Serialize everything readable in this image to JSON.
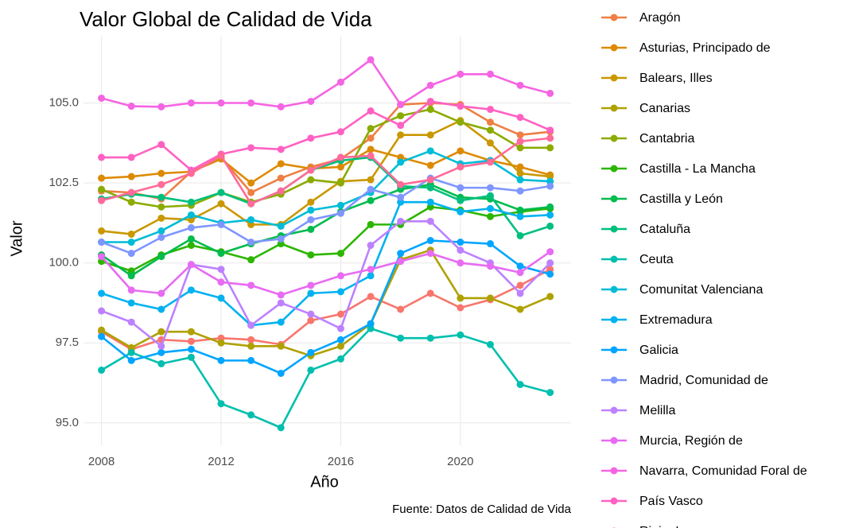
{
  "chart_data": {
    "type": "line",
    "title": "Valor Global de Calidad de Vida",
    "x_label": "Año",
    "y_label": "Valor",
    "caption": "Fuente: Datos de Calidad de Vida",
    "x": [
      2008,
      2009,
      2010,
      2011,
      2012,
      2013,
      2014,
      2015,
      2016,
      2017,
      2018,
      2019,
      2020,
      2021,
      2022,
      2023
    ],
    "xlim": [
      2007.4,
      2023.7
    ],
    "xticks": [
      2008,
      2012,
      2016,
      2020
    ],
    "ylim": [
      94.3,
      107.1
    ],
    "yticks": [
      {
        "value": 95,
        "label": "95.0"
      },
      {
        "value": 97.5,
        "label": "97.5"
      },
      {
        "value": 100,
        "label": "100.0"
      },
      {
        "value": 102.5,
        "label": "102.5"
      },
      {
        "value": 105,
        "label": "105.0"
      }
    ],
    "grid": true,
    "legend": "right",
    "series": [
      {
        "color": "#F8766D",
        "values": [
          97.85,
          97.3,
          97.6,
          97.55,
          97.65,
          97.6,
          97.45,
          98.2,
          98.4,
          98.95,
          98.55,
          99.05,
          98.6,
          98.85,
          99.3,
          99.8
        ]
      },
      {
        "name": "Aragón",
        "color": "#EE7F45",
        "values": [
          102.25,
          102.2,
          102.0,
          102.85,
          103.3,
          102.2,
          102.65,
          103.0,
          103.25,
          103.9,
          104.95,
          105.0,
          104.95,
          104.4,
          104.0,
          104.1
        ]
      },
      {
        "name": "Asturias, Principado de",
        "color": "#DD8A00",
        "values": [
          102.65,
          102.7,
          102.8,
          102.85,
          103.25,
          102.5,
          103.1,
          102.95,
          103.0,
          103.55,
          103.3,
          103.05,
          103.5,
          103.2,
          103.0,
          102.75
        ]
      },
      {
        "name": "Balears, Illes",
        "color": "#C99800",
        "values": [
          101.0,
          100.9,
          101.4,
          101.35,
          101.85,
          101.2,
          101.2,
          101.9,
          102.55,
          102.6,
          104.0,
          104.0,
          104.45,
          103.75,
          102.8,
          102.7
        ]
      },
      {
        "name": "Canarias",
        "color": "#AFA100",
        "values": [
          97.9,
          97.35,
          97.85,
          97.85,
          97.5,
          97.4,
          97.4,
          97.1,
          97.4,
          98.1,
          100.1,
          100.4,
          98.9,
          98.9,
          98.55,
          98.95
        ]
      },
      {
        "name": "Cantabria",
        "color": "#8BAB00",
        "values": [
          102.3,
          101.9,
          101.75,
          101.8,
          102.2,
          101.9,
          102.15,
          102.6,
          102.5,
          104.2,
          104.6,
          104.8,
          104.4,
          104.15,
          103.6,
          103.6
        ]
      },
      {
        "name": "Castilla - La Mancha",
        "color": "#2DB600",
        "values": [
          100.05,
          99.75,
          100.25,
          100.55,
          100.35,
          100.1,
          100.6,
          100.25,
          100.3,
          101.2,
          101.2,
          101.75,
          101.65,
          101.45,
          101.6,
          101.7
        ]
      },
      {
        "name": "Castilla y León",
        "color": "#00BB4E",
        "values": [
          100.25,
          99.6,
          100.2,
          100.75,
          100.3,
          100.6,
          100.85,
          101.05,
          101.6,
          101.95,
          102.3,
          102.45,
          102.05,
          102.0,
          101.65,
          101.75
        ]
      },
      {
        "name": "Cataluña",
        "color": "#00BF7D",
        "values": [
          102.0,
          102.15,
          102.05,
          101.9,
          102.2,
          101.85,
          102.25,
          102.9,
          103.2,
          103.3,
          102.4,
          102.35,
          101.95,
          102.1,
          100.85,
          101.15
        ]
      },
      {
        "name": "Ceuta",
        "color": "#00BFAE",
        "values": [
          96.65,
          97.2,
          96.85,
          97.05,
          95.6,
          95.25,
          94.85,
          96.65,
          97.0,
          97.95,
          97.65,
          97.65,
          97.75,
          97.45,
          96.2,
          95.95
        ]
      },
      {
        "name": "Comunitat Valenciana",
        "color": "#00BCD6",
        "values": [
          100.65,
          100.65,
          101.0,
          101.5,
          101.25,
          101.35,
          101.15,
          101.65,
          101.8,
          102.2,
          103.15,
          103.5,
          103.1,
          103.2,
          102.6,
          102.55
        ]
      },
      {
        "name": "Extremadura",
        "color": "#00B2F0",
        "values": [
          99.05,
          98.75,
          98.55,
          99.15,
          98.9,
          98.05,
          98.15,
          99.05,
          99.1,
          99.6,
          101.9,
          101.9,
          101.6,
          101.7,
          101.45,
          101.5
        ]
      },
      {
        "name": "Galicia",
        "color": "#00A5FF",
        "values": [
          97.7,
          96.95,
          97.2,
          97.3,
          96.95,
          96.95,
          96.55,
          97.2,
          97.6,
          98.1,
          100.3,
          100.7,
          100.65,
          100.6,
          99.9,
          99.65
        ]
      },
      {
        "name": "Madrid, Comunidad de",
        "color": "#7F96FF",
        "values": [
          100.65,
          100.3,
          100.8,
          101.1,
          101.2,
          100.65,
          100.75,
          101.35,
          101.55,
          102.3,
          102.05,
          102.65,
          102.35,
          102.35,
          102.25,
          102.4
        ]
      },
      {
        "name": "Melilla",
        "color": "#BD81FF",
        "values": [
          98.5,
          98.15,
          97.4,
          99.95,
          99.8,
          98.05,
          98.75,
          98.4,
          97.95,
          100.55,
          101.3,
          101.3,
          100.4,
          100.0,
          99.05,
          100.0
        ]
      },
      {
        "name": "Murcia, Región de",
        "color": "#E76BF3",
        "values": [
          100.2,
          99.15,
          99.05,
          99.95,
          99.4,
          99.3,
          99.0,
          99.3,
          99.6,
          99.8,
          100.05,
          100.3,
          100.0,
          99.9,
          99.7,
          100.35
        ]
      },
      {
        "name": "Navarra, Comunidad Foral de",
        "color": "#F564E3",
        "values": [
          105.15,
          104.9,
          104.88,
          105.0,
          105.0,
          105.0,
          104.88,
          105.05,
          105.65,
          106.35,
          104.95,
          105.55,
          105.9,
          105.9,
          105.55,
          105.3
        ]
      },
      {
        "name": "País Vasco",
        "color": "#FF61C3",
        "values": [
          103.3,
          103.3,
          103.7,
          102.9,
          103.4,
          103.6,
          103.55,
          103.9,
          104.1,
          104.75,
          104.3,
          105.05,
          104.9,
          104.8,
          104.55,
          104.15
        ]
      },
      {
        "name": "Rioja, La",
        "color": "#FF6A98",
        "values": [
          101.95,
          102.2,
          102.45,
          102.8,
          103.35,
          101.85,
          102.25,
          102.9,
          103.3,
          103.35,
          102.45,
          102.6,
          103.0,
          103.15,
          103.8,
          103.9
        ]
      }
    ]
  }
}
